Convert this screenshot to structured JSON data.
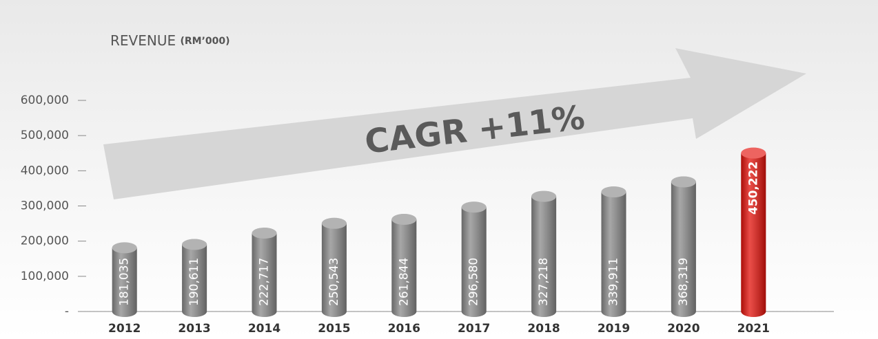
{
  "chart_data": {
    "type": "bar",
    "title": "REVENUE",
    "subtitle": "(RM’000)",
    "annotation": "CAGR +11%",
    "categories": [
      "2012",
      "2013",
      "2014",
      "2015",
      "2016",
      "2017",
      "2018",
      "2019",
      "2020",
      "2021"
    ],
    "values": [
      181035,
      190611,
      222717,
      250543,
      261844,
      296580,
      327218,
      339911,
      368319,
      450222
    ],
    "value_labels": [
      "181,035",
      "190,611",
      "222,717",
      "250,543",
      "261,844",
      "296,580",
      "327,218",
      "339,911",
      "368,319",
      "450,222"
    ],
    "colors": [
      "#8a8a8a",
      "#8a8a8a",
      "#8a8a8a",
      "#8a8a8a",
      "#8a8a8a",
      "#8a8a8a",
      "#8a8a8a",
      "#8a8a8a",
      "#8a8a8a",
      "#e3120b"
    ],
    "ylim": [
      0,
      600000
    ],
    "yticks": [
      {
        "value": 0,
        "label": "-"
      },
      {
        "value": 100000,
        "label": "100,000"
      },
      {
        "value": 200000,
        "label": "200,000"
      },
      {
        "value": 300000,
        "label": "300,000"
      },
      {
        "value": 400000,
        "label": "400,000"
      },
      {
        "value": 500000,
        "label": "500,000"
      },
      {
        "value": 600000,
        "label": "600,000"
      }
    ]
  }
}
